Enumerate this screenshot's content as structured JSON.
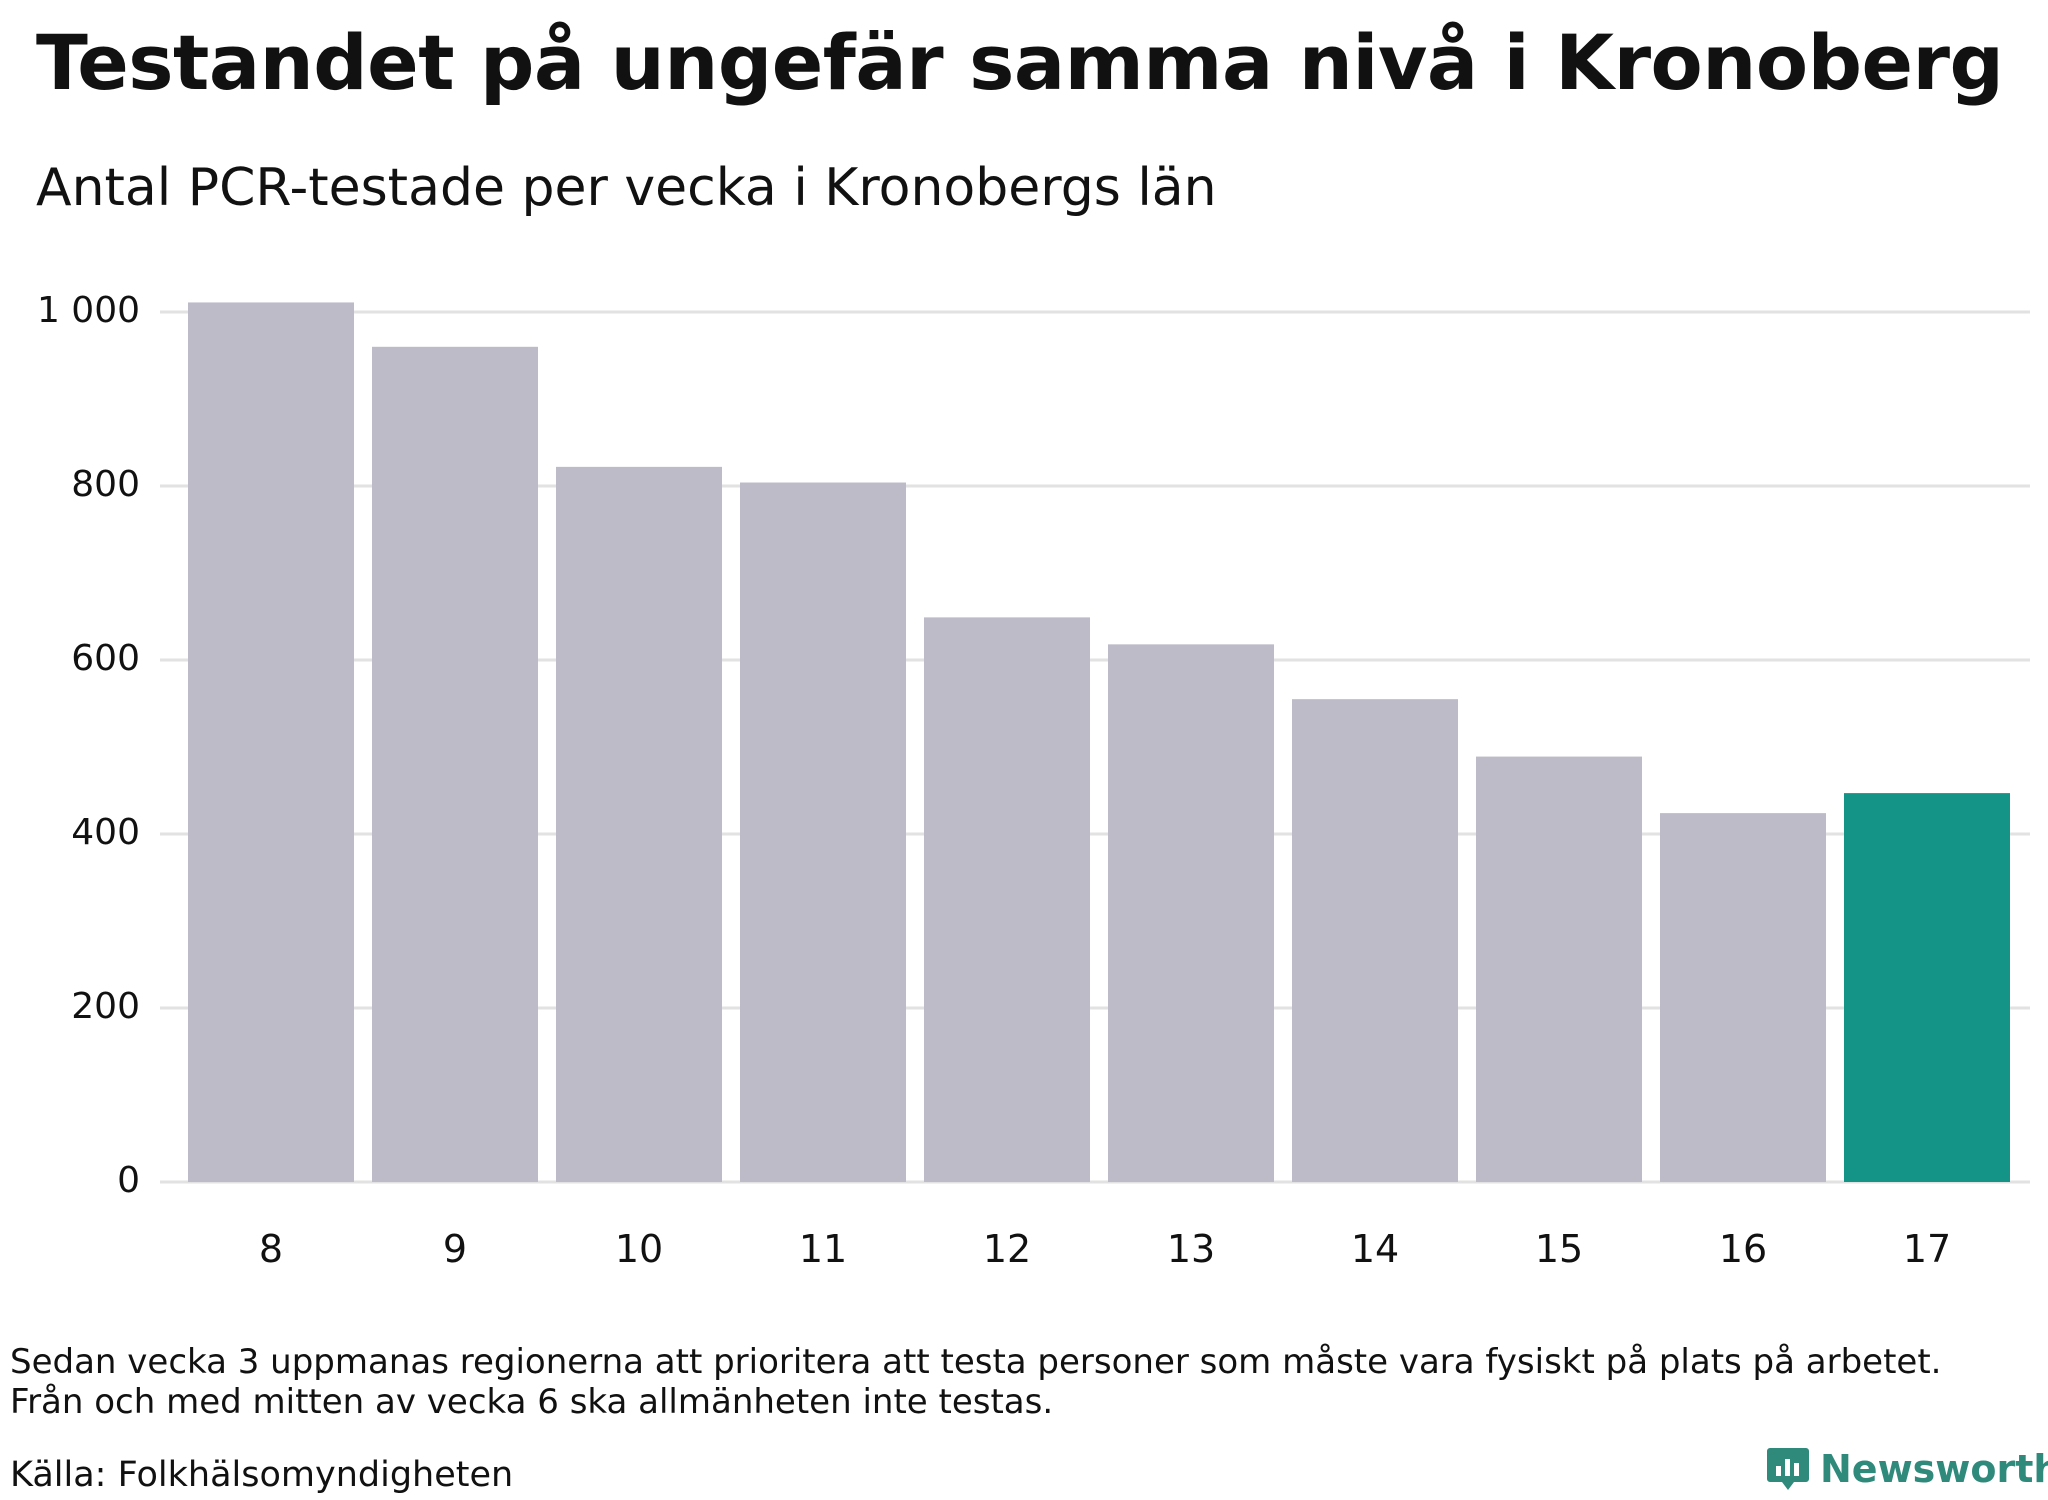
{
  "header": {
    "title": "Testandet på ungefär samma nivå i Kronoberg",
    "subtitle": "Antal PCR-testade per vecka i Kronobergs län"
  },
  "footer": {
    "note_line_1": "Sedan vecka 3 uppmanas regionerna att prioritera att testa personer som måste vara fysiskt på plats på arbetet.",
    "note_line_2": "Från och med mitten av vecka 6 ska allmänheten inte testas.",
    "source": "Källa: Folkhälsomyndigheten",
    "brand": "Newsworthy"
  },
  "colors": {
    "bar_default": "#bdbbc8",
    "bar_highlight": "#149486",
    "gridline": "#e2e2e2",
    "brand": "#2f8a7c",
    "text": "#111111"
  },
  "icons": {
    "brand_logo": "newsworthy-bars-icon"
  },
  "chart_data": {
    "type": "bar",
    "title": "Testandet på ungefär samma nivå i Kronoberg",
    "subtitle": "Antal PCR-testade per vecka i Kronobergs län",
    "xlabel": "",
    "ylabel": "",
    "categories": [
      "8",
      "9",
      "10",
      "11",
      "12",
      "13",
      "14",
      "15",
      "16",
      "17"
    ],
    "values": [
      1011,
      960,
      822,
      804,
      649,
      618,
      555,
      489,
      424,
      447
    ],
    "highlight_category": "17",
    "ylim": [
      0,
      1000
    ],
    "yticks": [
      0,
      200,
      400,
      600,
      800,
      1000
    ],
    "ytick_labels": [
      "0",
      "200",
      "400",
      "600",
      "800",
      "1 000"
    ],
    "grid": "horizontal",
    "legend": "none"
  }
}
